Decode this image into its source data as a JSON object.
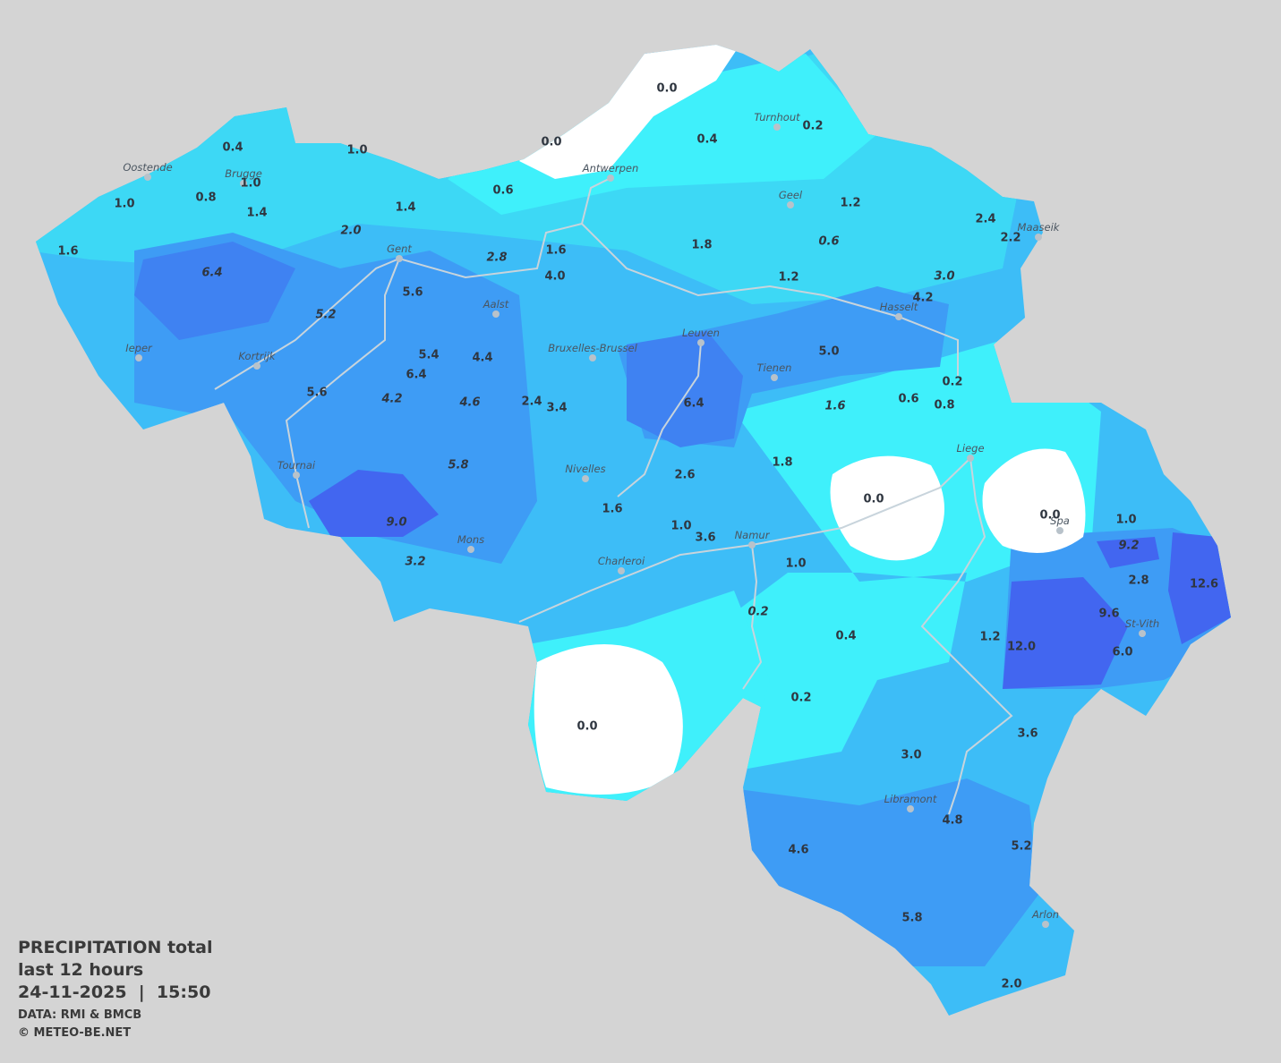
{
  "legend": {
    "title": "PRECIPITATION total",
    "subtitle": "last 12 hours",
    "datetime": "24-11-2025  |  15:50",
    "source": "DATA: RMI & BMCB",
    "copyright": "© METEO-BE.NET"
  },
  "cities": [
    "Oostende",
    "Brugge",
    "Antwerpen",
    "Turnhout",
    "Geel",
    "Maaseik",
    "Gent",
    "Aalst",
    "Hasselt",
    "Ieper",
    "Kortrijk",
    "Leuven",
    "Bruxelles-Brussel",
    "Tienen",
    "Liege",
    "Tournai",
    "Nivelles",
    "Spa",
    "Mons",
    "Namur",
    "Charleroi",
    "St-Vith",
    "Libramont",
    "Arlon"
  ],
  "stations": [
    {
      "text": "0.0"
    },
    {
      "text": "0.0"
    },
    {
      "text": "0.4"
    },
    {
      "text": "0.2"
    },
    {
      "text": "0.4"
    },
    {
      "text": "1.0"
    },
    {
      "text": "1.0"
    },
    {
      "text": "0.8"
    },
    {
      "text": "1.0"
    },
    {
      "text": "1.4"
    },
    {
      "text": "1.4"
    },
    {
      "text": "0.6"
    },
    {
      "text": "1.2"
    },
    {
      "text": "2.4"
    },
    {
      "text": "2.2"
    },
    {
      "text": "1.6"
    },
    {
      "text": "2.0",
      "italic": true
    },
    {
      "text": "1.6"
    },
    {
      "text": "1.8"
    },
    {
      "text": "0.6",
      "italic": true
    },
    {
      "text": "6.4",
      "italic": true
    },
    {
      "text": "2.8",
      "italic": true
    },
    {
      "text": "4.0"
    },
    {
      "text": "1.2"
    },
    {
      "text": "3.0",
      "italic": true
    },
    {
      "text": "4.2"
    },
    {
      "text": "5.6"
    },
    {
      "text": "5.2",
      "italic": true
    },
    {
      "text": "5.0"
    },
    {
      "text": "5.4"
    },
    {
      "text": "4.4"
    },
    {
      "text": "6.4"
    },
    {
      "text": "0.2"
    },
    {
      "text": "5.6"
    },
    {
      "text": "4.2",
      "italic": true
    },
    {
      "text": "4.6",
      "italic": true
    },
    {
      "text": "2.4"
    },
    {
      "text": "3.4"
    },
    {
      "text": "6.4"
    },
    {
      "text": "1.6",
      "italic": true
    },
    {
      "text": "0.6"
    },
    {
      "text": "0.8"
    },
    {
      "text": "5.8",
      "italic": true
    },
    {
      "text": "1.8"
    },
    {
      "text": "2.6"
    },
    {
      "text": "0.0"
    },
    {
      "text": "0.0"
    },
    {
      "text": "1.6"
    },
    {
      "text": "1.0"
    },
    {
      "text": "3.6"
    },
    {
      "text": "1.0"
    },
    {
      "text": "9.0",
      "italic": true
    },
    {
      "text": "9.2",
      "italic": true
    },
    {
      "text": "3.2",
      "italic": true
    },
    {
      "text": "1.0"
    },
    {
      "text": "2.8"
    },
    {
      "text": "12.6"
    },
    {
      "text": "0.2",
      "italic": true
    },
    {
      "text": "9.6"
    },
    {
      "text": "0.4"
    },
    {
      "text": "1.2"
    },
    {
      "text": "12.0"
    },
    {
      "text": "6.0"
    },
    {
      "text": "0.2"
    },
    {
      "text": "0.0"
    },
    {
      "text": "3.6"
    },
    {
      "text": "3.0"
    },
    {
      "text": "4.8"
    },
    {
      "text": "5.2"
    },
    {
      "text": "4.6"
    },
    {
      "text": "5.8"
    },
    {
      "text": "2.0"
    }
  ]
}
